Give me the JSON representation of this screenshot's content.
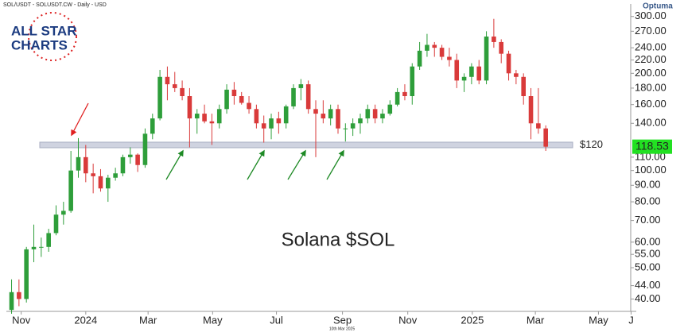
{
  "chart_data": {
    "type": "candlestick",
    "header": "SOL/USDT - SOLUSDT.CW - Daily - USD",
    "brand": "Optuma",
    "logo": [
      "ALL STAR",
      "CHARTS"
    ],
    "annotation": "Solana $SOL",
    "footer": "10th Mar 2025",
    "log_scale": true,
    "up_color": "#2e9e3a",
    "down_color": "#d93a3a",
    "x": [
      0,
      1,
      2,
      3,
      4,
      5,
      6,
      7,
      8,
      9,
      10,
      11,
      12,
      13,
      14,
      15,
      16,
      17,
      18,
      19,
      20,
      21,
      22,
      23,
      24,
      25,
      26,
      27,
      28,
      29,
      30,
      31,
      32,
      33,
      34,
      35,
      36,
      37,
      38,
      39,
      40,
      41,
      42,
      43,
      44,
      45,
      46,
      47,
      48,
      49,
      50,
      51,
      52,
      53,
      54,
      55,
      56,
      57,
      58,
      59,
      60,
      61,
      62,
      63,
      64,
      65,
      66,
      67,
      68,
      69,
      70,
      71,
      72
    ],
    "open": [
      37,
      42,
      40,
      57,
      58,
      58,
      64,
      73,
      75,
      100,
      110,
      98,
      96,
      88,
      95,
      98,
      110,
      112,
      104,
      130,
      145,
      195,
      185,
      180,
      170,
      145,
      150,
      142,
      140,
      155,
      178,
      170,
      162,
      155,
      140,
      135,
      145,
      140,
      158,
      180,
      185,
      155,
      150,
      145,
      155,
      135,
      135,
      140,
      145,
      155,
      145,
      150,
      160,
      175,
      170,
      210,
      235,
      245,
      240,
      225,
      220,
      190,
      195,
      210,
      190,
      260,
      250,
      230,
      200,
      195,
      170,
      140,
      135
    ],
    "high": [
      46,
      46,
      58,
      68,
      62,
      66,
      78,
      80,
      115,
      126,
      120,
      105,
      101,
      97,
      102,
      112,
      118,
      113,
      135,
      150,
      205,
      210,
      202,
      190,
      180,
      155,
      160,
      150,
      160,
      185,
      188,
      175,
      170,
      160,
      148,
      150,
      152,
      160,
      185,
      192,
      190,
      165,
      165,
      160,
      160,
      140,
      145,
      150,
      160,
      160,
      155,
      165,
      180,
      185,
      215,
      250,
      265,
      250,
      245,
      240,
      230,
      200,
      215,
      220,
      270,
      295,
      255,
      235,
      205,
      200,
      180,
      180,
      138
    ],
    "low": [
      36,
      38,
      39,
      52,
      54,
      56,
      63,
      68,
      74,
      95,
      92,
      85,
      86,
      80,
      93,
      96,
      105,
      99,
      102,
      125,
      143,
      165,
      175,
      165,
      118,
      130,
      140,
      120,
      135,
      150,
      160,
      160,
      150,
      135,
      122,
      125,
      130,
      135,
      155,
      165,
      150,
      110,
      140,
      138,
      130,
      123,
      128,
      130,
      140,
      140,
      140,
      148,
      158,
      165,
      160,
      205,
      225,
      225,
      220,
      210,
      180,
      175,
      185,
      185,
      185,
      240,
      215,
      190,
      185,
      160,
      125,
      130,
      115
    ],
    "close": [
      42,
      40,
      57,
      58,
      58,
      64,
      73,
      75,
      100,
      110,
      98,
      96,
      88,
      95,
      98,
      110,
      112,
      104,
      130,
      145,
      195,
      185,
      180,
      170,
      145,
      150,
      142,
      140,
      155,
      178,
      170,
      162,
      155,
      140,
      135,
      145,
      140,
      158,
      180,
      185,
      155,
      150,
      145,
      155,
      135,
      135,
      140,
      145,
      155,
      145,
      150,
      160,
      175,
      170,
      210,
      235,
      245,
      240,
      225,
      220,
      190,
      195,
      210,
      190,
      260,
      250,
      230,
      200,
      195,
      170,
      140,
      135,
      118.53
    ],
    "last_price": 118.53,
    "level": {
      "value": 120,
      "label": "$120"
    },
    "xlim": [
      -0.7,
      84.2
    ],
    "ylim": [
      36,
      328
    ],
    "xticks": [
      {
        "value": 1.3,
        "label": "Nov"
      },
      {
        "value": 10,
        "label": "2024"
      },
      {
        "value": 18.4,
        "label": "Mar"
      },
      {
        "value": 27.1,
        "label": "May"
      },
      {
        "value": 35.7,
        "label": "Jul"
      },
      {
        "value": 44.6,
        "label": "Sep"
      },
      {
        "value": 53.4,
        "label": "Nov"
      },
      {
        "value": 62.1,
        "label": "2025"
      },
      {
        "value": 70.6,
        "label": "Mar"
      },
      {
        "value": 79.1,
        "label": "May"
      },
      {
        "value": 83.5,
        "label": "J"
      }
    ],
    "yticks": [
      {
        "value": 300,
        "label": "300.00"
      },
      {
        "value": 270,
        "label": "270.00"
      },
      {
        "value": 240,
        "label": "240.00"
      },
      {
        "value": 220,
        "label": "220.00"
      },
      {
        "value": 200,
        "label": "200.00"
      },
      {
        "value": 180,
        "label": "180.00"
      },
      {
        "value": 160,
        "label": "160.00"
      },
      {
        "value": 140,
        "label": "140.00"
      },
      {
        "value": 110,
        "label": "110.00"
      },
      {
        "value": 100,
        "label": "100.00"
      },
      {
        "value": 90,
        "label": "90.00"
      },
      {
        "value": 80,
        "label": "80.00"
      },
      {
        "value": 70,
        "label": "70.00"
      },
      {
        "value": 60,
        "label": "60.00"
      },
      {
        "value": 55,
        "label": "55.00"
      },
      {
        "value": 50,
        "label": "50.00"
      },
      {
        "value": 44,
        "label": "44.00"
      },
      {
        "value": 40,
        "label": "40.00"
      }
    ]
  }
}
